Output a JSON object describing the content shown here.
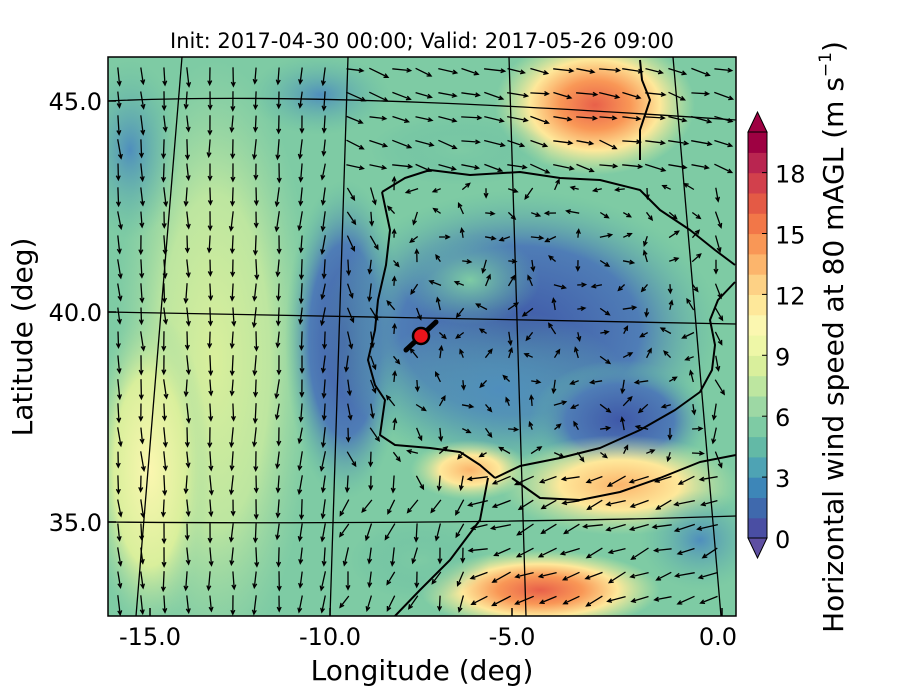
{
  "title": "Init: 2017-04-30 00:00; Valid: 2017-05-26 09:00",
  "x_axis": {
    "label": "Longitude (deg)",
    "ticks": [
      "-15.0",
      "-10.0",
      "-5.0",
      "0.0"
    ]
  },
  "y_axis": {
    "label": "Latitude (deg)",
    "ticks": [
      "45.0",
      "40.0",
      "35.0"
    ]
  },
  "colorbar": {
    "label": "Horizontal wind speed at 80 mAGL (m s",
    "unit_sup": "−1",
    "label_close": ")",
    "ticks": [
      "0",
      "3",
      "6",
      "9",
      "12",
      "15",
      "18"
    ],
    "range": [
      0,
      20
    ],
    "extend": "both",
    "colormap": "Spectral_r",
    "colors": [
      "#4a4ea3",
      "#3f69ad",
      "#3d86b8",
      "#4ea3b4",
      "#63b9a6",
      "#7ecba4",
      "#9dd8a4",
      "#bde6a0",
      "#d9ef9c",
      "#eef7a7",
      "#fbf7b0",
      "#fee89a",
      "#fdd185",
      "#fcb56c",
      "#f99756",
      "#f27748",
      "#e45a45",
      "#d2404c",
      "#b92550",
      "#9e0142"
    ],
    "under_color": "#5e4fa2",
    "over_color": "#9e0142"
  },
  "map": {
    "lon_range": [
      -16,
      0.3
    ],
    "lat_range": [
      32.6,
      46.2
    ],
    "projection": "lambert-conformal",
    "meridians": [
      -15,
      -10,
      -5,
      0
    ],
    "parallels": [
      45,
      40,
      35
    ],
    "arrow_color": "#000000",
    "coast_color": "#000000",
    "marker_color": "#e8141b"
  }
}
